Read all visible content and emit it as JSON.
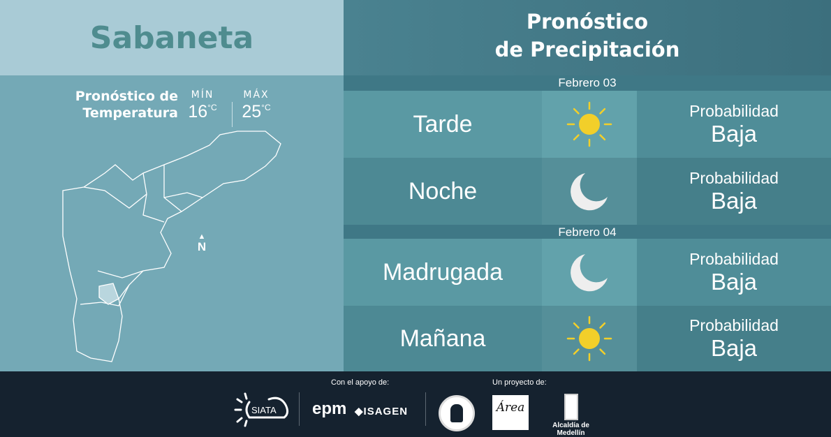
{
  "location": {
    "name": "Sabaneta"
  },
  "temperature": {
    "title_line1": "Pronóstico de",
    "title_line2": "Temperatura",
    "min_label": "MÍN",
    "min_value": "16",
    "max_label": "MÁX",
    "max_value": "25",
    "unit": "°C"
  },
  "map": {
    "north_label": "N"
  },
  "precipitation": {
    "title_line1": "Pronóstico",
    "title_line2": "de Precipitación",
    "days": [
      {
        "date": "Febrero 03",
        "periods": [
          {
            "period": "Tarde",
            "icon": "sun-icon",
            "prob_label": "Probabilidad",
            "prob_value": "Baja"
          },
          {
            "period": "Noche",
            "icon": "moon-icon",
            "prob_label": "Probabilidad",
            "prob_value": "Baja"
          }
        ]
      },
      {
        "date": "Febrero 04",
        "periods": [
          {
            "period": "Madrugada",
            "icon": "moon-icon",
            "prob_label": "Probabilidad",
            "prob_value": "Baja"
          },
          {
            "period": "Mañana",
            "icon": "sun-icon",
            "prob_label": "Probabilidad",
            "prob_value": "Baja"
          }
        ]
      }
    ]
  },
  "footer": {
    "support_label": "Con el apoyo de:",
    "project_label": "Un proyecto de:",
    "logos": [
      "SIATA",
      "epm",
      "ISAGEN",
      "Área Metropolitana Valle de Aburrá",
      "Alcaldía de Medellín"
    ]
  },
  "colors": {
    "sun": "#f2cf2a",
    "moon": "#eeeeee",
    "footer": "#15222f"
  }
}
